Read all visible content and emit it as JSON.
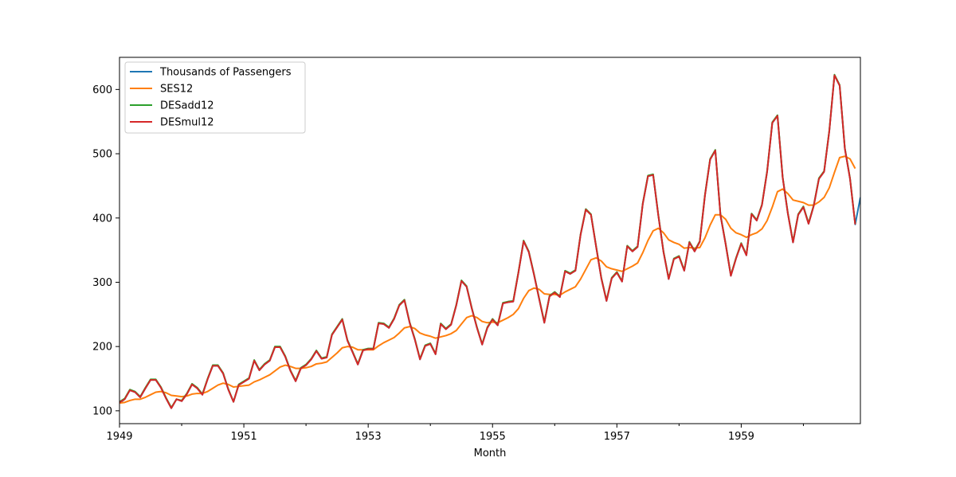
{
  "chart_data": {
    "type": "line",
    "title": "",
    "xlabel": "Month",
    "ylabel": "",
    "xlim": [
      1949.0,
      1960.917
    ],
    "ylim": [
      80,
      650
    ],
    "x_ticks": [
      1949,
      1951,
      1953,
      1955,
      1957,
      1959
    ],
    "x_minor_ticks": [
      1950,
      1952,
      1954,
      1956,
      1958,
      1960
    ],
    "y_ticks": [
      100,
      200,
      300,
      400,
      500,
      600
    ],
    "grid": false,
    "legend_position": "top-left",
    "series": [
      {
        "name": "Thousands of Passengers",
        "color": "#1f77b4",
        "values": [
          112,
          118,
          132,
          129,
          121,
          135,
          148,
          148,
          136,
          119,
          104,
          118,
          115,
          126,
          141,
          135,
          125,
          149,
          170,
          170,
          158,
          133,
          114,
          140,
          145,
          150,
          178,
          163,
          172,
          178,
          199,
          199,
          184,
          162,
          146,
          166,
          171,
          180,
          193,
          181,
          183,
          218,
          230,
          242,
          209,
          191,
          172,
          194,
          196,
          196,
          236,
          235,
          229,
          243,
          264,
          272,
          237,
          211,
          180,
          201,
          204,
          188,
          235,
          227,
          234,
          264,
          302,
          293,
          259,
          229,
          203,
          229,
          242,
          233,
          267,
          269,
          270,
          315,
          364,
          347,
          312,
          274,
          237,
          278,
          284,
          277,
          317,
          313,
          318,
          374,
          413,
          405,
          355,
          306,
          271,
          306,
          315,
          301,
          356,
          348,
          355,
          422,
          465,
          467,
          404,
          347,
          305,
          336,
          340,
          318,
          362,
          348,
          363,
          435,
          491,
          505,
          404,
          359,
          310,
          337,
          360,
          342,
          406,
          396,
          420,
          472,
          548,
          559,
          463,
          407,
          362,
          405,
          417,
          391,
          419,
          461,
          472,
          535,
          622,
          606,
          508,
          461,
          390,
          432
        ]
      },
      {
        "name": "SES12",
        "color": "#ff7f0e",
        "values": [
          112,
          113,
          116,
          118,
          118,
          121,
          125,
          129,
          130,
          128,
          124,
          123,
          122,
          123,
          126,
          127,
          127,
          130,
          135,
          140,
          143,
          141,
          137,
          138,
          139,
          140,
          145,
          148,
          152,
          156,
          162,
          168,
          171,
          169,
          166,
          166,
          167,
          169,
          173,
          174,
          176,
          183,
          190,
          198,
          200,
          199,
          195,
          195,
          195,
          195,
          201,
          206,
          210,
          214,
          221,
          229,
          231,
          228,
          221,
          218,
          216,
          213,
          215,
          217,
          220,
          225,
          235,
          245,
          248,
          245,
          239,
          237,
          238,
          237,
          241,
          245,
          250,
          259,
          275,
          287,
          291,
          289,
          282,
          281,
          281,
          280,
          285,
          289,
          293,
          305,
          320,
          335,
          338,
          333,
          324,
          321,
          319,
          317,
          321,
          325,
          330,
          346,
          365,
          380,
          384,
          377,
          366,
          362,
          359,
          353,
          354,
          353,
          354,
          369,
          389,
          405,
          405,
          398,
          384,
          377,
          374,
          370,
          374,
          377,
          383,
          396,
          417,
          441,
          445,
          438,
          428,
          426,
          424,
          420,
          420,
          425,
          432,
          447,
          471,
          494,
          496,
          492,
          477
        ]
      },
      {
        "name": "DESadd12",
        "color": "#2ca02c",
        "values": [
          114,
          119,
          133,
          130,
          122,
          136,
          149,
          149,
          137,
          120,
          105,
          118,
          116,
          127,
          142,
          136,
          126,
          150,
          171,
          171,
          159,
          134,
          114,
          141,
          146,
          151,
          179,
          164,
          173,
          179,
          200,
          200,
          185,
          163,
          147,
          167,
          172,
          181,
          194,
          182,
          184,
          219,
          231,
          243,
          210,
          192,
          173,
          195,
          197,
          197,
          237,
          236,
          230,
          244,
          265,
          273,
          238,
          212,
          181,
          202,
          205,
          189,
          236,
          228,
          235,
          265,
          303,
          294,
          260,
          230,
          204,
          230,
          243,
          234,
          268,
          270,
          271,
          316,
          365,
          348,
          313,
          275,
          238,
          279,
          285,
          278,
          318,
          314,
          319,
          375,
          414,
          406,
          356,
          307,
          272,
          307,
          316,
          302,
          357,
          349,
          356,
          423,
          466,
          468,
          405,
          348,
          306,
          337,
          341,
          319,
          363,
          349,
          364,
          436,
          492,
          506,
          405,
          360,
          311,
          338,
          361,
          343,
          407,
          397,
          421,
          473,
          549,
          560,
          464,
          408,
          363,
          406,
          418,
          392,
          420,
          462,
          473,
          536,
          623,
          607,
          509,
          462,
          391
        ]
      },
      {
        "name": "DESmul12",
        "color": "#d62728",
        "values": [
          113,
          118,
          132,
          129,
          121,
          135,
          148,
          148,
          136,
          119,
          104,
          118,
          115,
          126,
          141,
          135,
          125,
          149,
          170,
          170,
          158,
          133,
          114,
          140,
          145,
          150,
          178,
          163,
          172,
          178,
          199,
          199,
          184,
          162,
          146,
          166,
          171,
          180,
          193,
          181,
          183,
          218,
          230,
          242,
          209,
          191,
          172,
          194,
          196,
          196,
          236,
          235,
          229,
          243,
          264,
          272,
          237,
          211,
          180,
          201,
          204,
          188,
          235,
          227,
          234,
          264,
          302,
          293,
          259,
          229,
          203,
          229,
          242,
          233,
          267,
          269,
          270,
          315,
          364,
          347,
          312,
          274,
          237,
          278,
          284,
          277,
          317,
          313,
          318,
          374,
          413,
          405,
          355,
          306,
          271,
          306,
          315,
          301,
          356,
          348,
          355,
          422,
          465,
          467,
          404,
          347,
          305,
          336,
          340,
          318,
          362,
          348,
          363,
          435,
          491,
          505,
          404,
          359,
          310,
          337,
          360,
          342,
          406,
          396,
          420,
          472,
          548,
          559,
          463,
          407,
          362,
          405,
          417,
          391,
          419,
          461,
          472,
          535,
          622,
          606,
          508,
          461,
          390
        ]
      }
    ]
  }
}
